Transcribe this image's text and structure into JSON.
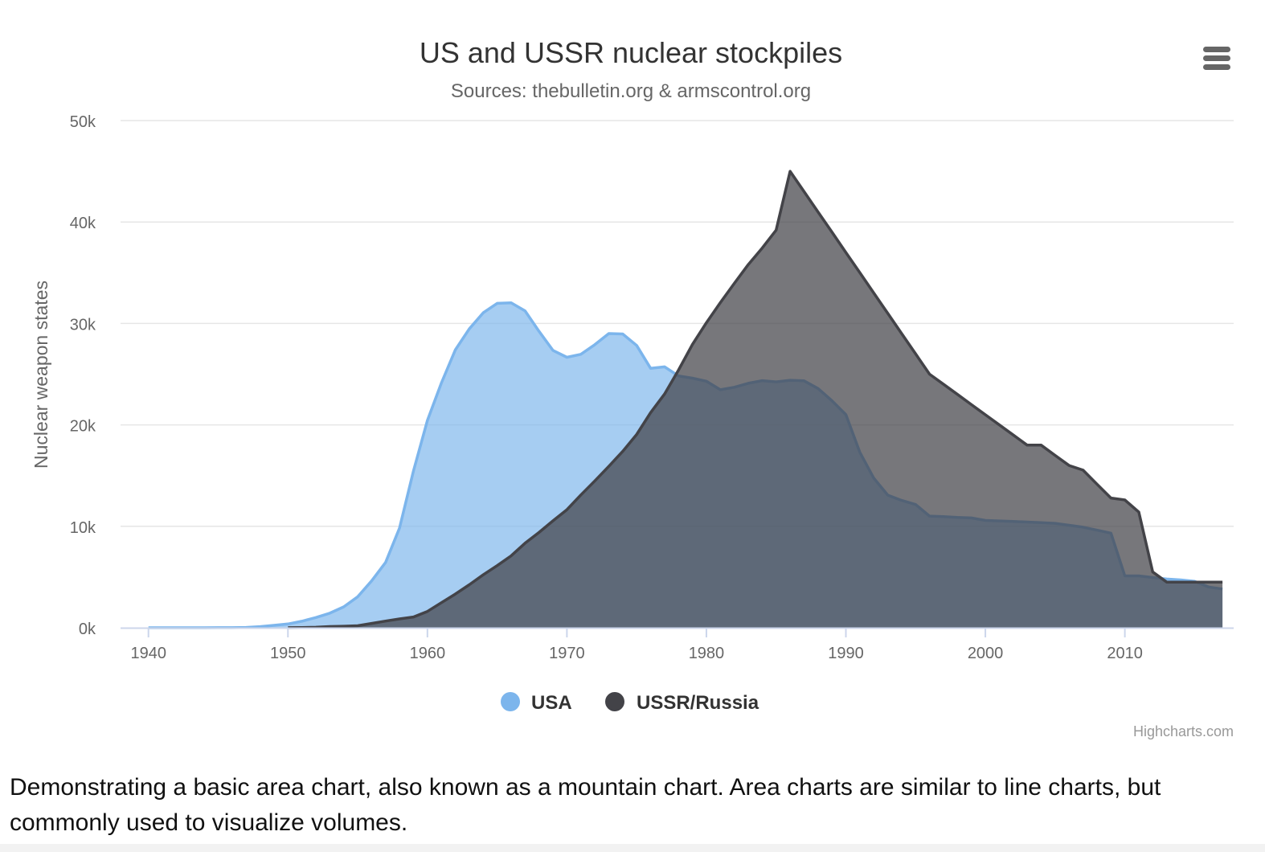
{
  "menu": {
    "icon": "hamburger-menu-icon",
    "color": "#666666"
  },
  "credits": "Highcharts.com",
  "description": "Demonstrating a basic area chart, also known as a mountain chart. Area charts are similar to line charts, but commonly used to visualize volumes.",
  "chart_data": {
    "type": "area",
    "title": "US and USSR nuclear stockpiles",
    "subtitle": "Sources: thebulletin.org & armscontrol.org",
    "xlabel": "",
    "ylabel": "Nuclear weapon states",
    "xlim": [
      1938,
      2017.8
    ],
    "ylim": [
      0,
      50000
    ],
    "xticks": [
      "1940",
      "1950",
      "1960",
      "1970",
      "1980",
      "1990",
      "2000",
      "2010"
    ],
    "yticks": [
      "0k",
      "10k",
      "20k",
      "30k",
      "40k",
      "50k"
    ],
    "grid": true,
    "legend_position": "bottom-center",
    "colors": {
      "grid": "#e6e6e6",
      "axis": "#ccd6eb",
      "text": "#333333",
      "tick_text": "#666666"
    },
    "series": [
      {
        "name": "USA",
        "color": "#7cb5ec",
        "fill_opacity": 0.68,
        "points": [
          [
            1940,
            0
          ],
          [
            1941,
            0
          ],
          [
            1942,
            0
          ],
          [
            1943,
            0
          ],
          [
            1944,
            0
          ],
          [
            1945,
            6
          ],
          [
            1946,
            11
          ],
          [
            1947,
            32
          ],
          [
            1948,
            110
          ],
          [
            1949,
            235
          ],
          [
            1950,
            369
          ],
          [
            1951,
            640
          ],
          [
            1952,
            1005
          ],
          [
            1953,
            1436
          ],
          [
            1954,
            2063
          ],
          [
            1955,
            3057
          ],
          [
            1956,
            4618
          ],
          [
            1957,
            6444
          ],
          [
            1958,
            9822
          ],
          [
            1959,
            15468
          ],
          [
            1960,
            20434
          ],
          [
            1961,
            24126
          ],
          [
            1962,
            27387
          ],
          [
            1963,
            29459
          ],
          [
            1964,
            31056
          ],
          [
            1965,
            31982
          ],
          [
            1966,
            32040
          ],
          [
            1967,
            31233
          ],
          [
            1968,
            29224
          ],
          [
            1969,
            27342
          ],
          [
            1970,
            26662
          ],
          [
            1971,
            26956
          ],
          [
            1972,
            27912
          ],
          [
            1973,
            28999
          ],
          [
            1974,
            28965
          ],
          [
            1975,
            27826
          ],
          [
            1976,
            25579
          ],
          [
            1977,
            25722
          ],
          [
            1978,
            24826
          ],
          [
            1979,
            24605
          ],
          [
            1980,
            24304
          ],
          [
            1981,
            23464
          ],
          [
            1982,
            23708
          ],
          [
            1983,
            24099
          ],
          [
            1984,
            24357
          ],
          [
            1985,
            24237
          ],
          [
            1986,
            24401
          ],
          [
            1987,
            24344
          ],
          [
            1988,
            23586
          ],
          [
            1989,
            22380
          ],
          [
            1990,
            21004
          ],
          [
            1991,
            17287
          ],
          [
            1992,
            14747
          ],
          [
            1993,
            13076
          ],
          [
            1994,
            12555
          ],
          [
            1995,
            12144
          ],
          [
            1996,
            11009
          ],
          [
            1997,
            10950
          ],
          [
            1998,
            10871
          ],
          [
            1999,
            10824
          ],
          [
            2000,
            10577
          ],
          [
            2001,
            10527
          ],
          [
            2002,
            10475
          ],
          [
            2003,
            10421
          ],
          [
            2004,
            10358
          ],
          [
            2005,
            10295
          ],
          [
            2006,
            10104
          ],
          [
            2007,
            9914
          ],
          [
            2008,
            9620
          ],
          [
            2009,
            9326
          ],
          [
            2010,
            5113
          ],
          [
            2011,
            5113
          ],
          [
            2012,
            4954
          ],
          [
            2013,
            4804
          ],
          [
            2014,
            4717
          ],
          [
            2015,
            4571
          ],
          [
            2016,
            4018
          ],
          [
            2017,
            3822
          ]
        ]
      },
      {
        "name": "USSR/Russia",
        "color": "#434348",
        "fill_opacity": 0.72,
        "points": [
          [
            1950,
            5
          ],
          [
            1951,
            25
          ],
          [
            1952,
            50
          ],
          [
            1953,
            120
          ],
          [
            1954,
            150
          ],
          [
            1955,
            200
          ],
          [
            1956,
            426
          ],
          [
            1957,
            660
          ],
          [
            1958,
            869
          ],
          [
            1959,
            1060
          ],
          [
            1960,
            1605
          ],
          [
            1961,
            2471
          ],
          [
            1962,
            3322
          ],
          [
            1963,
            4238
          ],
          [
            1964,
            5221
          ],
          [
            1965,
            6129
          ],
          [
            1966,
            7089
          ],
          [
            1967,
            8339
          ],
          [
            1968,
            9399
          ],
          [
            1969,
            10538
          ],
          [
            1970,
            11643
          ],
          [
            1971,
            13092
          ],
          [
            1972,
            14478
          ],
          [
            1973,
            15915
          ],
          [
            1974,
            17385
          ],
          [
            1975,
            19055
          ],
          [
            1976,
            21205
          ],
          [
            1977,
            23044
          ],
          [
            1978,
            25393
          ],
          [
            1979,
            27935
          ],
          [
            1980,
            30062
          ],
          [
            1981,
            32049
          ],
          [
            1982,
            33952
          ],
          [
            1983,
            35804
          ],
          [
            1984,
            37431
          ],
          [
            1985,
            39197
          ],
          [
            1986,
            45000
          ],
          [
            1987,
            43000
          ],
          [
            1988,
            41000
          ],
          [
            1989,
            39000
          ],
          [
            1990,
            37000
          ],
          [
            1991,
            35000
          ],
          [
            1992,
            33000
          ],
          [
            1993,
            31000
          ],
          [
            1994,
            29000
          ],
          [
            1995,
            27000
          ],
          [
            1996,
            25000
          ],
          [
            1997,
            24000
          ],
          [
            1998,
            23000
          ],
          [
            1999,
            22000
          ],
          [
            2000,
            21000
          ],
          [
            2001,
            20000
          ],
          [
            2002,
            19000
          ],
          [
            2003,
            18000
          ],
          [
            2004,
            18000
          ],
          [
            2005,
            17000
          ],
          [
            2006,
            16000
          ],
          [
            2007,
            15537
          ],
          [
            2008,
            14162
          ],
          [
            2009,
            12787
          ],
          [
            2010,
            12600
          ],
          [
            2011,
            11400
          ],
          [
            2012,
            5500
          ],
          [
            2013,
            4500
          ],
          [
            2014,
            4500
          ],
          [
            2015,
            4500
          ],
          [
            2016,
            4500
          ],
          [
            2017,
            4500
          ]
        ]
      }
    ]
  }
}
